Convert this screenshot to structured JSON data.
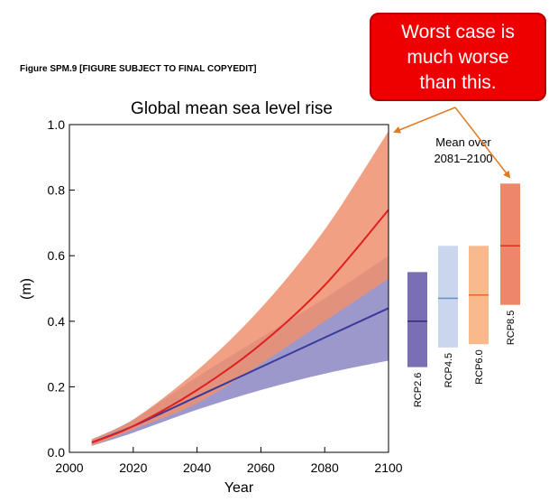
{
  "caption": "Figure SPM.9 [FIGURE SUBJECT TO FINAL COPYEDIT]",
  "callout": {
    "lines": [
      "Worst case is",
      "much worse",
      "than  this."
    ],
    "color": "#ee0000"
  },
  "chart_data": {
    "type": "area",
    "title": "Global mean sea level rise",
    "xlabel": "Year",
    "ylabel": "(m)",
    "xlim": [
      2000,
      2100
    ],
    "ylim": [
      0.0,
      1.0
    ],
    "xticks": [
      2000,
      2020,
      2040,
      2060,
      2080,
      2100
    ],
    "yticks": [
      0.0,
      0.2,
      0.4,
      0.6,
      0.8,
      1.0
    ],
    "ytick_labels": [
      "0.0",
      "0.2",
      "0.4",
      "0.6",
      "0.8",
      "1.0"
    ],
    "grid": false,
    "series": [
      {
        "color": "#3a3a9a",
        "band_color": "#9d98cc",
        "x": [
          2007,
          2020,
          2040,
          2060,
          2080,
          2100
        ],
        "mean": [
          0.03,
          0.08,
          0.17,
          0.26,
          0.35,
          0.44
        ],
        "lower": [
          0.02,
          0.06,
          0.13,
          0.19,
          0.24,
          0.28
        ],
        "upper": [
          0.04,
          0.1,
          0.23,
          0.35,
          0.47,
          0.6
        ]
      },
      {
        "color": "#e02020",
        "band_color": "#ee8f6e",
        "x": [
          2007,
          2020,
          2040,
          2060,
          2080,
          2100
        ],
        "mean": [
          0.03,
          0.08,
          0.19,
          0.33,
          0.51,
          0.74
        ],
        "lower": [
          0.02,
          0.07,
          0.15,
          0.27,
          0.4,
          0.53
        ],
        "upper": [
          0.04,
          0.1,
          0.25,
          0.44,
          0.68,
          0.98
        ]
      }
    ],
    "side_title": [
      "Mean over",
      "2081–2100"
    ],
    "scenario_bars": [
      {
        "name": "RCP2.6",
        "low": 0.26,
        "high": 0.55,
        "mean": 0.4,
        "color": "#7a6fb5",
        "line_color": "#2e2a80"
      },
      {
        "name": "RCP4.5",
        "low": 0.32,
        "high": 0.63,
        "mean": 0.47,
        "color": "#c9d6ee",
        "line_color": "#6a8fc8"
      },
      {
        "name": "RCP6.0",
        "low": 0.33,
        "high": 0.63,
        "mean": 0.48,
        "color": "#f8b98c",
        "line_color": "#e06a20"
      },
      {
        "name": "RCP8.5",
        "low": 0.45,
        "high": 0.82,
        "mean": 0.63,
        "color": "#ee866a",
        "line_color": "#d93020"
      }
    ],
    "annotation_color": "#e07a20"
  }
}
